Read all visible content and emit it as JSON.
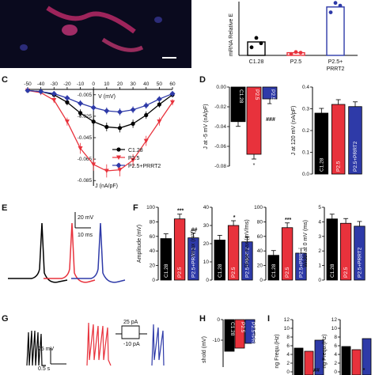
{
  "panels": {
    "C": "C",
    "D": "D",
    "E": "E",
    "F": "F",
    "G": "G",
    "H": "H",
    "I": "I"
  },
  "colors": {
    "c128": "#000000",
    "p25": "#e8323c",
    "prrt2": "#2e3aa8"
  },
  "scale_bars": {
    "e_mv": "20 mV",
    "e_ms": "10 ms",
    "g_mv": "25 mV",
    "g_s": "0.5 s",
    "g_pulse_hi": "25 pA",
    "g_pulse_lo": "-10 pA"
  },
  "chart_data": [
    {
      "id": "B",
      "type": "bar",
      "ylabel": "mRNA Relative E",
      "categories": [
        "C1.28",
        "P2.5",
        "P2.5+\nPRRT2"
      ],
      "values": [
        1.0,
        0.2,
        3.6
      ],
      "points": [
        [
          0.6,
          1.3,
          0.9
        ],
        [
          0.1,
          0.25,
          0.2
        ],
        [
          3.2,
          3.9,
          3.7
        ]
      ],
      "ylim": [
        0,
        4
      ]
    },
    {
      "id": "C",
      "type": "line",
      "xlabel": "V (mV)",
      "ylabel": "J (nA/pF)",
      "x": [
        -50,
        -40,
        -30,
        -20,
        -10,
        0,
        10,
        20,
        30,
        40,
        50,
        60
      ],
      "xticks": [
        -50,
        -40,
        -30,
        -20,
        -10,
        0,
        10,
        20,
        30,
        40,
        50,
        60
      ],
      "yticks": [
        -0.005,
        -0.025,
        -0.045,
        -0.065,
        -0.085
      ],
      "ylim": [
        -0.09,
        0
      ],
      "series": [
        {
          "name": "C1.28",
          "color": "#000000",
          "marker": "circle",
          "values": [
            -0.001,
            -0.002,
            -0.005,
            -0.012,
            -0.022,
            -0.03,
            -0.035,
            -0.036,
            -0.032,
            -0.024,
            -0.014,
            -0.005
          ]
        },
        {
          "name": "P2.5",
          "color": "#e8323c",
          "marker": "triangle",
          "values": [
            -0.001,
            -0.003,
            -0.01,
            -0.03,
            -0.055,
            -0.07,
            -0.076,
            -0.075,
            -0.066,
            -0.048,
            -0.03,
            -0.012
          ]
        },
        {
          "name": "P2.5+PRRT2",
          "color": "#2e3aa8",
          "marker": "diamond",
          "values": [
            -0.001,
            -0.002,
            -0.004,
            -0.008,
            -0.013,
            -0.017,
            -0.02,
            -0.021,
            -0.019,
            -0.015,
            -0.009,
            -0.004
          ]
        }
      ]
    },
    {
      "id": "D1",
      "type": "bar",
      "ylabel": "J at -5 mV (nA/pF)",
      "categories": [
        "C1.28",
        "P2.5",
        "P2.5+PRRT2"
      ],
      "values": [
        -0.035,
        -0.068,
        -0.012
      ],
      "yticks": [
        "0.00",
        "-0.02",
        "-0.04",
        "-0.06",
        "-0.08"
      ],
      "annotations": [
        "*",
        "###"
      ]
    },
    {
      "id": "D2",
      "type": "bar",
      "ylabel": "J at 120 mV (nA/pF)",
      "categories": [
        "C1.28",
        "P2.5",
        "P2.5+PRRT2"
      ],
      "values": [
        0.28,
        0.32,
        0.31
      ],
      "yticks": [
        "0.0",
        "0.1",
        "0.2",
        "0.3",
        "0.4"
      ],
      "ylim": [
        0,
        0.4
      ]
    },
    {
      "id": "F1",
      "type": "bar",
      "ylabel": "Amplitude (mV)",
      "categories": [
        "C1.28",
        "P2.5",
        "P2.5+PRRT2"
      ],
      "values": [
        57,
        84,
        58
      ],
      "yticks": [
        "0",
        "20",
        "40",
        "60",
        "80",
        "100"
      ],
      "ylim": [
        0,
        100
      ],
      "annotations": [
        "***",
        "##"
      ]
    },
    {
      "id": "F2",
      "type": "bar",
      "ylabel": "Vmax (mV)",
      "categories": [
        "C1.28",
        "P2.5",
        "P2.5+PRRT2"
      ],
      "values": [
        22,
        30,
        21
      ],
      "yticks": [
        "0",
        "10",
        "20",
        "30",
        "40"
      ],
      "ylim": [
        0,
        40
      ],
      "annotations": [
        "*"
      ]
    },
    {
      "id": "F3",
      "type": "bar",
      "ylabel": "Slope max (mV/ms)",
      "categories": [
        "C1.28",
        "P2.5",
        "P2.5+PRRT2"
      ],
      "values": [
        34,
        72,
        37
      ],
      "yticks": [
        "0",
        "20",
        "40",
        "60",
        "80",
        "100"
      ],
      "ylim": [
        0,
        100
      ],
      "annotations": [
        "***"
      ]
    },
    {
      "id": "F4",
      "type": "bar",
      "ylabel": "Width at 0 mV (ms)",
      "categories": [
        "C1.28",
        "P2.5",
        "P2.5+PRRT2"
      ],
      "values": [
        4.2,
        3.9,
        3.7
      ],
      "yticks": [
        "0",
        "1",
        "2",
        "3",
        "4",
        "5"
      ],
      "ylim": [
        0,
        5
      ]
    },
    {
      "id": "H",
      "type": "bar",
      "ylabel": "shold (mV)",
      "categories": [
        "C1.28",
        "P2.5",
        "P2.5+PRRT2"
      ],
      "yticks": [
        "0",
        "-10"
      ]
    },
    {
      "id": "I1",
      "type": "bar",
      "ylabel": "ng Frequ.(Hz)",
      "yticks": [
        "0",
        "2",
        "4",
        "6",
        "8",
        "10",
        "12"
      ],
      "annotations": [
        "##"
      ]
    },
    {
      "id": "I2",
      "type": "bar",
      "ylabel": "ng Frequ.(Hz)",
      "yticks": [
        "0",
        "2",
        "4",
        "6",
        "8",
        "10",
        "12"
      ],
      "annotations": [
        "*"
      ]
    }
  ]
}
